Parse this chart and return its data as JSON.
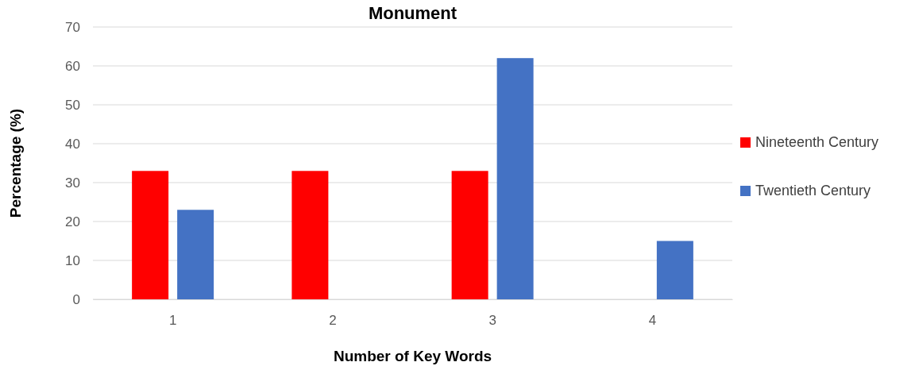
{
  "chart_data": {
    "type": "bar",
    "title": "Monument",
    "xlabel": "Number of Key Words",
    "ylabel": "Percentage (%)",
    "categories": [
      "1",
      "2",
      "3",
      "4"
    ],
    "series": [
      {
        "name": "Nineteenth Century",
        "color": "#ff0000",
        "values": [
          33,
          33,
          33,
          null
        ]
      },
      {
        "name": "Twentieth Century",
        "color": "#4472c4",
        "values": [
          23,
          null,
          62,
          15
        ]
      }
    ],
    "ylim": [
      0,
      70
    ],
    "yticks": [
      0,
      10,
      20,
      30,
      40,
      50,
      60,
      70
    ],
    "grid": "y",
    "legend": "right"
  }
}
